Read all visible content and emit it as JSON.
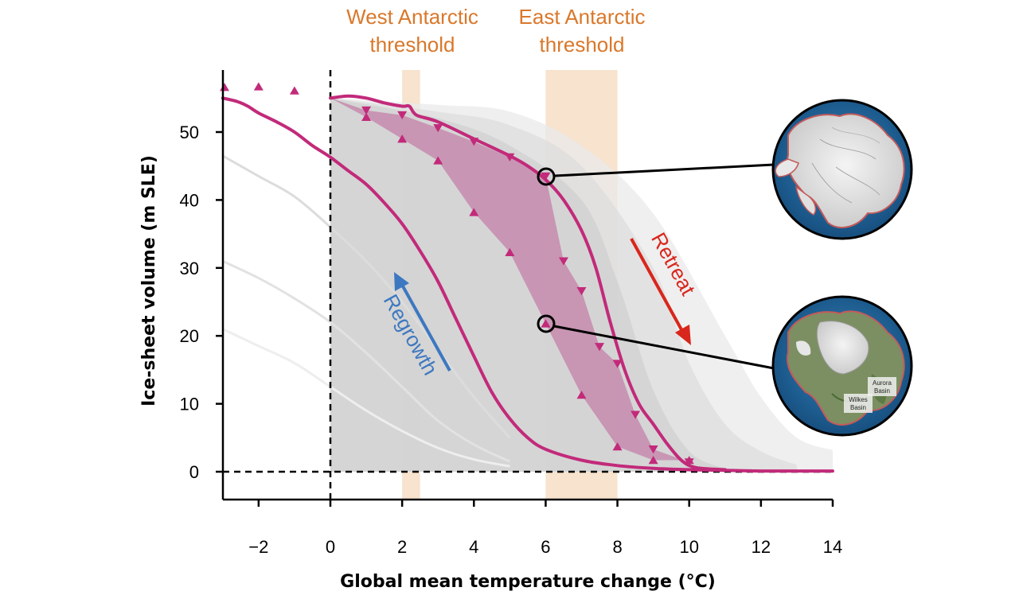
{
  "chart_data": {
    "type": "line",
    "xlabel": "Global mean temperature change (°C)",
    "ylabel": "Ice-sheet volume (m SLE)",
    "xlim": [
      -3,
      14
    ],
    "ylim": [
      -4,
      59
    ],
    "xticks": [
      -2,
      0,
      2,
      4,
      6,
      8,
      10,
      12,
      14
    ],
    "xtick_labels": [
      "−2",
      "0",
      "2",
      "4",
      "6",
      "8",
      "10",
      "12",
      "14"
    ],
    "yticks": [
      0,
      10,
      20,
      30,
      40,
      50
    ],
    "ytick_labels": [
      "0",
      "10",
      "20",
      "30",
      "40",
      "50"
    ],
    "thresholds": [
      {
        "label_lines": [
          "West Antarctic",
          "threshold"
        ],
        "range": [
          2.0,
          2.5
        ],
        "color": "#f5dcc2"
      },
      {
        "label_lines": [
          "East Antarctic",
          "threshold"
        ],
        "range": [
          6.0,
          8.0
        ],
        "color": "#f5dcc2"
      }
    ],
    "reference_lines": {
      "x": 0,
      "y": 0,
      "style": "dashed"
    },
    "series": [
      {
        "role": "retreat-curve",
        "color": "#c22a7a",
        "x": [
          0,
          0.5,
          1,
          1.5,
          2,
          2.2,
          2.4,
          3,
          4,
          5,
          5.5,
          6,
          6.5,
          7,
          7.4,
          7.8,
          8.2,
          8.6,
          9,
          9.4,
          9.8,
          10.2,
          11
        ],
        "y": [
          55,
          55.3,
          55,
          54.3,
          53.8,
          53.8,
          52.5,
          51.5,
          49,
          46.5,
          45,
          43,
          40,
          35.5,
          30,
          22,
          15,
          10,
          7,
          4,
          1.6,
          0.6,
          0.3
        ]
      },
      {
        "role": "regrowth-curve",
        "color": "#c22a7a",
        "x": [
          -3,
          -2.6,
          -2.3,
          -2,
          -1.5,
          -1,
          -0.5,
          0,
          0.5,
          1,
          1.5,
          2,
          2.5,
          3,
          3.5,
          4,
          4.5,
          5,
          5.5,
          6,
          7,
          8,
          9,
          10,
          11,
          12,
          13,
          14
        ],
        "y": [
          55,
          54.5,
          53.8,
          52.8,
          51.5,
          50,
          48,
          46.3,
          44.3,
          42.3,
          39.6,
          36.5,
          32.5,
          28,
          22.5,
          17,
          11.7,
          7.8,
          5,
          3.3,
          1.7,
          0.9,
          0.5,
          0.3,
          0.2,
          0.1,
          0.1,
          0.1
        ]
      }
    ],
    "markers": {
      "color": "#c22a7a",
      "retreat_points": [
        [
          1,
          53.2
        ],
        [
          2,
          52.5
        ],
        [
          3,
          50.6
        ],
        [
          4,
          48.6
        ],
        [
          5,
          46.3
        ],
        [
          6,
          43.5
        ],
        [
          6.5,
          31
        ],
        [
          7,
          26.6
        ],
        [
          7.5,
          18.4
        ],
        [
          8,
          15.9
        ],
        [
          8.5,
          8.4
        ],
        [
          9,
          3.3
        ],
        [
          10,
          1.4
        ]
      ],
      "regrowth_points": [
        [
          -3,
          56.6
        ],
        [
          -2,
          56.7
        ],
        [
          -1,
          56.1
        ],
        [
          1,
          52.2
        ],
        [
          2,
          49
        ],
        [
          3,
          45.8
        ],
        [
          4,
          38.2
        ],
        [
          5,
          32.3
        ],
        [
          6,
          21.8
        ],
        [
          7,
          11.3
        ],
        [
          8,
          3.7
        ],
        [
          9,
          1.7
        ],
        [
          10,
          1.7
        ]
      ]
    },
    "hysteresis_fill": {
      "color": "#c27ba5",
      "upper": [
        [
          0,
          55
        ],
        [
          1,
          53.2
        ],
        [
          2,
          52.5
        ],
        [
          3,
          50.6
        ],
        [
          4,
          48.6
        ],
        [
          5,
          46.3
        ],
        [
          6,
          43.5
        ],
        [
          6.5,
          31
        ],
        [
          7,
          26.6
        ],
        [
          7.5,
          18.4
        ],
        [
          8,
          15.9
        ],
        [
          8.5,
          8.4
        ],
        [
          9,
          3.3
        ],
        [
          10,
          1.4
        ]
      ],
      "lower": [
        [
          10,
          1.7
        ],
        [
          9,
          1.7
        ],
        [
          8,
          3.7
        ],
        [
          7,
          11.3
        ],
        [
          6,
          21.8
        ],
        [
          5,
          32.3
        ],
        [
          4,
          38.2
        ],
        [
          3,
          45.8
        ],
        [
          2,
          49
        ],
        [
          1,
          52.2
        ],
        [
          0,
          55
        ]
      ]
    },
    "envelopes": [
      {
        "color": "#e9e9e9",
        "upper_x": [
          0,
          3,
          5,
          7,
          9,
          11,
          12,
          13,
          14
        ],
        "upper_y": [
          55,
          54,
          53,
          48,
          38,
          20,
          11,
          5,
          3.2
        ]
      },
      {
        "color": "#dedede",
        "upper_x": [
          0,
          3,
          5,
          7,
          9,
          10,
          11,
          12,
          13
        ],
        "upper_y": [
          55,
          53,
          51,
          45,
          30,
          16,
          7,
          3,
          1
        ]
      },
      {
        "color": "#d0d0d0",
        "upper_x": [
          0,
          3,
          5,
          7,
          8,
          9,
          10,
          11
        ],
        "upper_y": [
          55,
          52,
          48,
          40,
          28,
          12,
          3,
          0.5
        ]
      }
    ],
    "background_curves": [
      {
        "color": "#dcdcdc",
        "x": [
          -3,
          -2,
          -1,
          0,
          1,
          2,
          3,
          4,
          5
        ],
        "y": [
          46.5,
          43.5,
          40.5,
          36,
          31,
          25,
          18,
          11,
          5
        ]
      },
      {
        "color": "#e2e2e2",
        "x": [
          -3,
          -2,
          -1,
          0,
          1,
          2,
          3,
          4,
          5
        ],
        "y": [
          31,
          28.5,
          25.5,
          22,
          17.5,
          12.5,
          7.5,
          4,
          1.5
        ]
      },
      {
        "color": "#eeeeee",
        "x": [
          -3,
          -2,
          -1,
          0,
          1,
          2,
          3,
          4,
          5
        ],
        "y": [
          21,
          18.5,
          16,
          12.5,
          9,
          6,
          3.5,
          1.8,
          0.8
        ]
      }
    ],
    "annotations": [
      {
        "text": "Retreat",
        "color": "#d9261c",
        "direction": "down-right"
      },
      {
        "text": "Regrowth",
        "color": "#3d78c0",
        "direction": "up-left"
      }
    ],
    "callouts": [
      {
        "point": [
          6,
          43.3
        ],
        "inset": "antarctica-full-map"
      },
      {
        "point": [
          6,
          21.8
        ],
        "inset": "antarctica-retreated-map",
        "labels": [
          "Aurora",
          "Basin",
          "Wilkes",
          "Basin"
        ]
      }
    ]
  }
}
